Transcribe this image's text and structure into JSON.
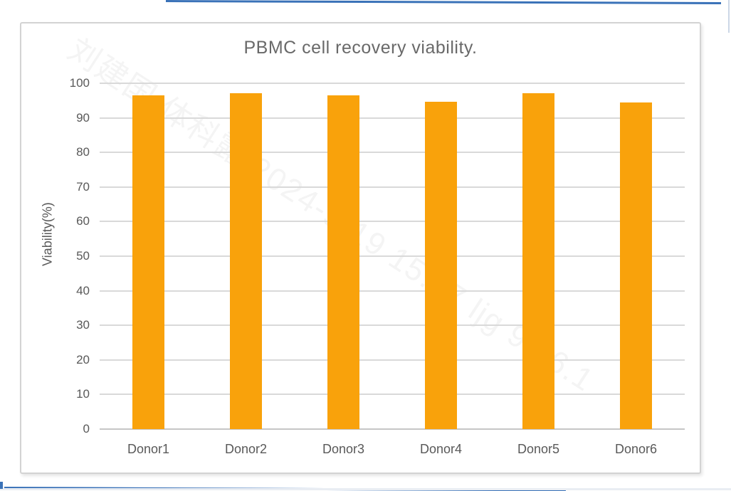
{
  "page": {
    "background": "#ffffff",
    "edge_line_color": "#3a72b8",
    "frame_border_color": "#d3d3d3"
  },
  "watermark": {
    "text": "刘建国 体科露 2024-9-19 15:07 ljg 9.16.1"
  },
  "chart_data": {
    "type": "bar",
    "title": "PBMC cell recovery viability.",
    "xlabel": "",
    "ylabel": "Viability(%)",
    "categories": [
      "Donor1",
      "Donor2",
      "Donor3",
      "Donor4",
      "Donor5",
      "Donor6"
    ],
    "values": [
      96.5,
      97.2,
      96.5,
      94.7,
      97.2,
      94.4
    ],
    "ylim": [
      0,
      100
    ],
    "yticks": [
      0,
      10,
      20,
      30,
      40,
      50,
      60,
      70,
      80,
      90,
      100
    ],
    "grid": "horizontal",
    "legend_position": "none",
    "bar_color": "#f9a20b",
    "gridline_color": "#d9d9d9",
    "axis_text_color": "#595959",
    "title_color": "#696969"
  }
}
